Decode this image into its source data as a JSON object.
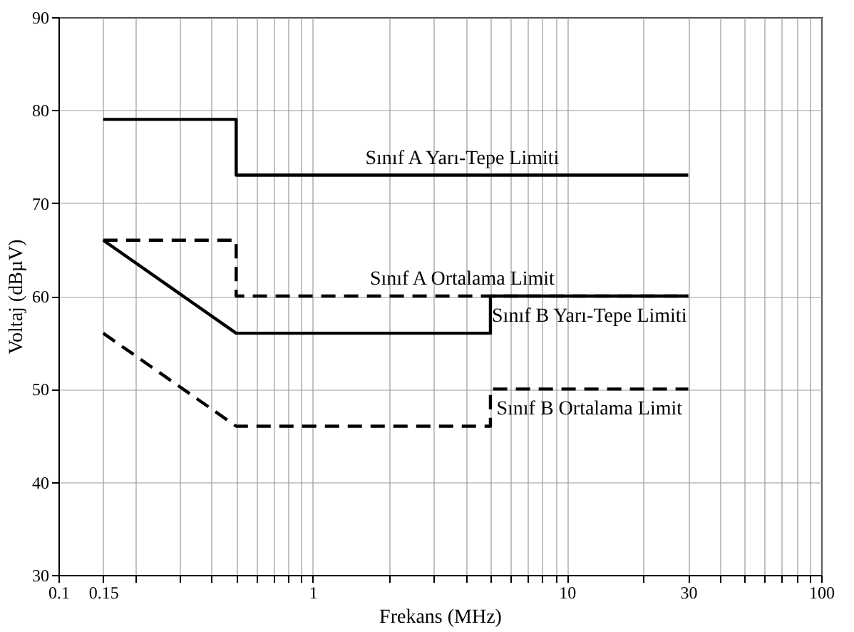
{
  "chart_data": {
    "type": "line",
    "xlabel": "Frekans (MHz)",
    "ylabel": "Voltaj (dBµV)",
    "log": "x",
    "grid": true,
    "xlim": [
      0.1,
      100
    ],
    "ylim": [
      30,
      90
    ],
    "xticks": [
      0.1,
      0.15,
      {
        "value": 0.2,
        "label": null
      },
      {
        "value": 0.3,
        "label": null
      },
      {
        "value": 0.4,
        "label": null
      },
      {
        "value": 0.5,
        "label": null
      },
      {
        "value": 0.6,
        "label": null
      },
      {
        "value": 0.7,
        "label": null
      },
      {
        "value": 0.8,
        "label": null
      },
      {
        "value": 0.9,
        "label": null
      },
      1,
      {
        "value": 2,
        "label": null
      },
      {
        "value": 3,
        "label": null
      },
      {
        "value": 4,
        "label": null
      },
      {
        "value": 5,
        "label": null
      },
      {
        "value": 6,
        "label": null
      },
      {
        "value": 7,
        "label": null
      },
      {
        "value": 8,
        "label": null
      },
      {
        "value": 9,
        "label": null
      },
      10,
      {
        "value": 20,
        "label": null
      },
      30,
      {
        "value": 40,
        "label": null
      },
      {
        "value": 50,
        "label": null
      },
      {
        "value": 60,
        "label": null
      },
      {
        "value": 70,
        "label": null
      },
      {
        "value": 80,
        "label": null
      },
      {
        "value": 90,
        "label": null
      },
      100
    ],
    "yticks": [
      30,
      40,
      50,
      60,
      70,
      80,
      90
    ],
    "series": [
      {
        "name": "Sınıf A Yarı-Tepe Limiti",
        "color": "#000000",
        "line_style": "solid",
        "x": [
          0.15,
          0.5,
          0.5,
          30
        ],
        "values": [
          79,
          79,
          73,
          73
        ]
      },
      {
        "name": "Sınıf A Ortalama Limit",
        "color": "#000000",
        "line_style": "dashed",
        "x": [
          0.15,
          0.5,
          0.5,
          30
        ],
        "values": [
          66,
          66,
          60,
          60
        ]
      },
      {
        "name": "Sınıf B Yarı-Tepe Limiti",
        "color": "#000000",
        "line_style": "solid",
        "x": [
          0.15,
          0.5,
          5,
          5,
          30
        ],
        "values": [
          66,
          56,
          56,
          60,
          60
        ]
      },
      {
        "name": "Sınıf B Ortalama Limit",
        "color": "#000000",
        "line_style": "dashed",
        "x": [
          0.15,
          0.5,
          5,
          5,
          30
        ],
        "values": [
          56,
          46,
          46,
          50,
          50
        ]
      }
    ]
  }
}
